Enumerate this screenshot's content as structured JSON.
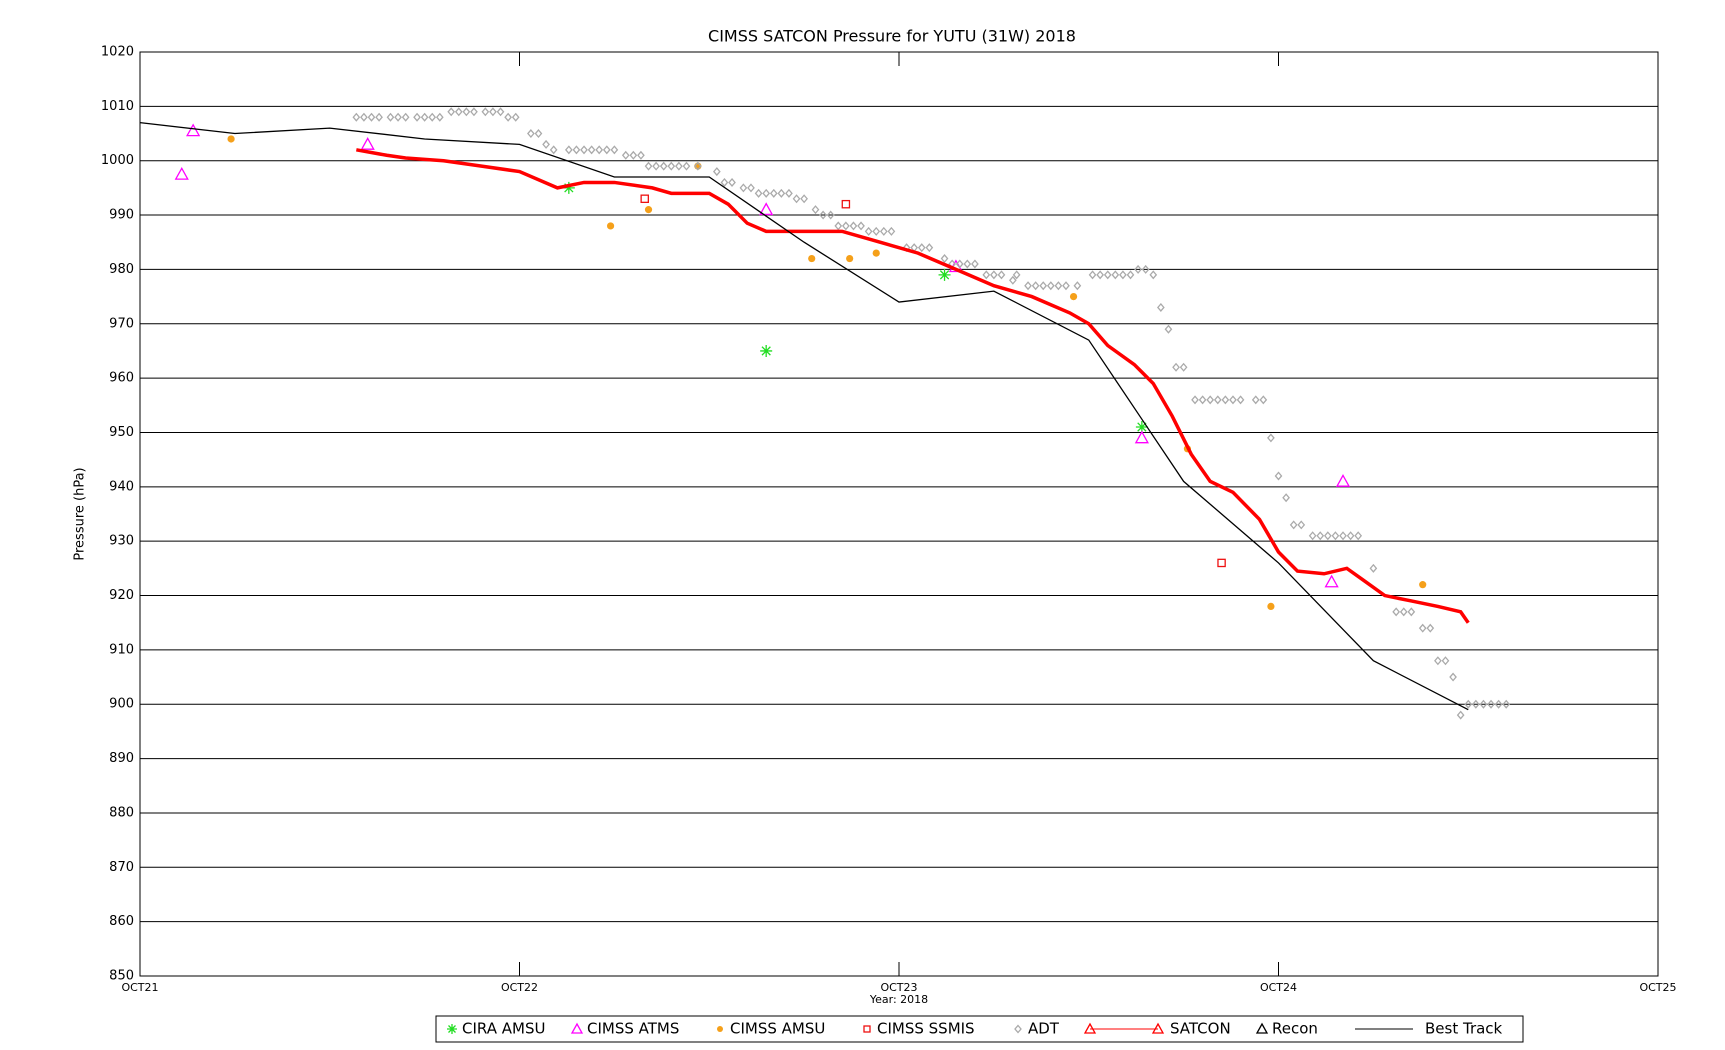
{
  "chart_data": {
    "type": "line",
    "title": "CIMSS SATCON Pressure for YUTU (31W) 2018",
    "y_label": "Pressure (hPa)",
    "x_label": "Year: 2018",
    "xlim": [
      21,
      25
    ],
    "xticks": [
      {
        "value": 21,
        "label": "OCT21"
      },
      {
        "value": 22,
        "label": "OCT22"
      },
      {
        "value": 23,
        "label": "OCT23"
      },
      {
        "value": 24,
        "label": "OCT24"
      },
      {
        "value": 25,
        "label": "OCT25"
      }
    ],
    "ylim": [
      850,
      1020
    ],
    "yticks": [
      850,
      860,
      870,
      880,
      890,
      900,
      910,
      920,
      930,
      940,
      950,
      960,
      970,
      980,
      990,
      1000,
      1010,
      1020
    ],
    "grid": true,
    "legend": "bottom",
    "series": [
      {
        "name": "CIRA AMSU",
        "color": "#22dd22",
        "style": "asterisk",
        "x": [
          22.13,
          22.65,
          23.12,
          23.64
        ],
        "values": [
          995,
          965,
          979,
          951
        ]
      },
      {
        "name": "CIMSS ATMS",
        "color": "#ff00ff",
        "style": "triangle",
        "x": [
          21.11,
          21.14,
          21.6,
          22.65,
          23.15,
          23.64,
          24.14,
          24.17
        ],
        "values": [
          997.5,
          1005.5,
          1003,
          991,
          980.5,
          949,
          922.5,
          941
        ]
      },
      {
        "name": "CIMSS AMSU",
        "color": "#f5a01a",
        "style": "circle",
        "x": [
          21.24,
          22.24,
          22.34,
          22.47,
          22.77,
          22.87,
          22.94,
          23.46,
          23.76,
          23.98,
          24.38
        ],
        "values": [
          1004,
          988,
          991,
          999,
          982,
          982,
          983,
          975,
          947,
          918,
          922
        ]
      },
      {
        "name": "CIMSS SSMIS",
        "color": "#ee1111",
        "style": "square",
        "x": [
          22.33,
          22.86,
          23.85
        ],
        "values": [
          993,
          992,
          926
        ]
      },
      {
        "name": "ADT",
        "color": "#aaaaaa",
        "style": "diamond",
        "x": [
          21.57,
          21.59,
          21.61,
          21.63,
          21.66,
          21.68,
          21.7,
          21.73,
          21.75,
          21.77,
          21.79,
          21.82,
          21.84,
          21.86,
          21.88,
          21.91,
          21.93,
          21.95,
          21.97,
          21.99,
          22.03,
          22.05,
          22.07,
          22.09,
          22.13,
          22.15,
          22.17,
          22.19,
          22.21,
          22.23,
          22.25,
          22.28,
          22.3,
          22.32,
          22.34,
          22.36,
          22.38,
          22.4,
          22.42,
          22.44,
          22.47,
          22.52,
          22.54,
          22.56,
          22.59,
          22.61,
          22.63,
          22.65,
          22.67,
          22.69,
          22.71,
          22.73,
          22.75,
          22.78,
          22.8,
          22.82,
          22.84,
          22.86,
          22.88,
          22.9,
          22.92,
          22.94,
          22.96,
          22.98,
          23.02,
          23.04,
          23.06,
          23.08,
          23.12,
          23.14,
          23.16,
          23.18,
          23.2,
          23.23,
          23.25,
          23.27,
          23.3,
          23.31,
          23.34,
          23.36,
          23.38,
          23.4,
          23.42,
          23.44,
          23.47,
          23.51,
          23.53,
          23.55,
          23.57,
          23.59,
          23.61,
          23.63,
          23.65,
          23.67,
          23.69,
          23.71,
          23.73,
          23.75,
          23.78,
          23.8,
          23.82,
          23.84,
          23.86,
          23.88,
          23.9,
          23.94,
          23.96,
          23.98,
          24.0,
          24.02,
          24.04,
          24.06,
          24.09,
          24.11,
          24.13,
          24.15,
          24.17,
          24.19,
          24.21,
          24.25,
          24.31,
          24.33,
          24.35,
          24.38,
          24.4,
          24.42,
          24.44,
          24.46,
          24.48,
          24.5,
          24.52,
          24.54,
          24.56,
          24.58,
          24.6
        ],
        "values": [
          1008,
          1008,
          1008,
          1008,
          1008,
          1008,
          1008,
          1008,
          1008,
          1008,
          1008,
          1009,
          1009,
          1009,
          1009,
          1009,
          1009,
          1009,
          1008,
          1008,
          1005,
          1005,
          1003,
          1002,
          1002,
          1002,
          1002,
          1002,
          1002,
          1002,
          1002,
          1001,
          1001,
          1001,
          999,
          999,
          999,
          999,
          999,
          999,
          999,
          998,
          996,
          996,
          995,
          995,
          994,
          994,
          994,
          994,
          994,
          993,
          993,
          991,
          990,
          990,
          988,
          988,
          988,
          988,
          987,
          987,
          987,
          987,
          984,
          984,
          984,
          984,
          982,
          981,
          981,
          981,
          981,
          979,
          979,
          979,
          978,
          979,
          977,
          977,
          977,
          977,
          977,
          977,
          977,
          979,
          979,
          979,
          979,
          979,
          979,
          980,
          980,
          979,
          973,
          969,
          962,
          962,
          956,
          956,
          956,
          956,
          956,
          956,
          956,
          956,
          956,
          949,
          942,
          938,
          933,
          933,
          931,
          931,
          931,
          931,
          931,
          931,
          931,
          925,
          917,
          917,
          917,
          914,
          914,
          908,
          908,
          905,
          898,
          900,
          900,
          900,
          900,
          900,
          900
        ]
      },
      {
        "name": "SATCON",
        "color": "#ff0000",
        "style": "line-triangle",
        "x": [
          21.57,
          21.65,
          21.7,
          21.8,
          21.9,
          22.0,
          22.1,
          22.17,
          22.25,
          22.35,
          22.4,
          22.45,
          22.5,
          22.55,
          22.6,
          22.65,
          22.75,
          22.85,
          22.95,
          23.05,
          23.15,
          23.25,
          23.35,
          23.45,
          23.5,
          23.55,
          23.62,
          23.67,
          23.72,
          23.77,
          23.82,
          23.88,
          23.95,
          24.0,
          24.05,
          24.12,
          24.18,
          24.22,
          24.28,
          24.35,
          24.42,
          24.48,
          24.5
        ],
        "values": [
          1002,
          1001,
          1000.5,
          1000,
          999,
          998,
          995,
          996,
          996,
          995,
          994,
          994,
          994,
          992,
          988.5,
          987,
          987,
          987,
          985,
          983,
          980,
          977,
          975,
          972,
          970,
          966,
          962.5,
          959,
          953,
          946,
          941,
          939,
          934,
          928,
          924.5,
          924,
          925,
          923,
          920,
          919,
          918,
          917,
          915
        ]
      },
      {
        "name": "Recon",
        "color": "#000000",
        "style": "triangle-open",
        "x": [],
        "values": []
      },
      {
        "name": "Best Track",
        "color": "#000000",
        "style": "line",
        "x": [
          21.0,
          21.25,
          21.5,
          21.75,
          22.0,
          22.25,
          22.5,
          22.75,
          23.0,
          23.25,
          23.5,
          23.75,
          24.0,
          24.25,
          24.5
        ],
        "values": [
          1007,
          1005,
          1006,
          1004,
          1003,
          997,
          997,
          985,
          974,
          976,
          967,
          941,
          926,
          908,
          899
        ]
      }
    ]
  }
}
